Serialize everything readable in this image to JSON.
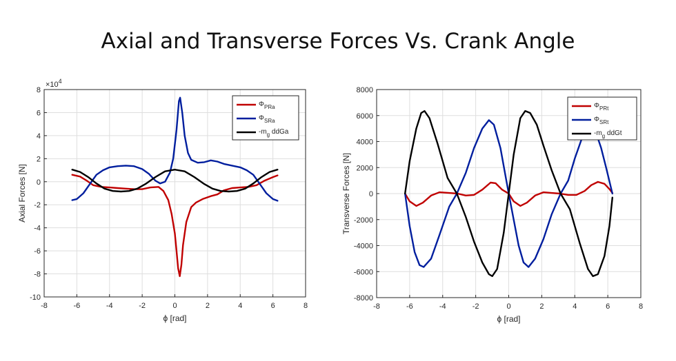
{
  "title": "Axial and Transverse Forces Vs. Crank Angle",
  "chart_data": [
    {
      "type": "line",
      "xlabel": "ϕ [rad]",
      "ylabel": "Axial Forces [N]",
      "exponent_label": "×10",
      "exponent_power": "4",
      "xlim": [
        -8,
        8
      ],
      "ylim": [
        -10,
        8
      ],
      "x_ticks": [
        -8,
        -6,
        -4,
        -2,
        0,
        2,
        4,
        6,
        8
      ],
      "y_ticks": [
        -10,
        -8,
        -6,
        -4,
        -2,
        0,
        2,
        4,
        6,
        8
      ],
      "x_tick_labels": [
        "-8",
        "-6",
        "-4",
        "-2",
        "0",
        "2",
        "4",
        "6",
        "8"
      ],
      "y_tick_labels": [
        "-10",
        "-8",
        "-6",
        "-4",
        "-2",
        "0",
        "2",
        "4",
        "6",
        "8"
      ],
      "grid": true,
      "legend_position": "top-right",
      "units_note": "y values in units of 10^4 N",
      "series": [
        {
          "sym": "Φ",
          "sub": "PRa",
          "color": "#c00000",
          "points": [
            [
              -6.28,
              0.6
            ],
            [
              -5.8,
              0.45
            ],
            [
              -5.4,
              0.1
            ],
            [
              -5.0,
              -0.3
            ],
            [
              -4.5,
              -0.45
            ],
            [
              -4.0,
              -0.5
            ],
            [
              -3.5,
              -0.55
            ],
            [
              -3.0,
              -0.6
            ],
            [
              -2.5,
              -0.65
            ],
            [
              -2.0,
              -0.65
            ],
            [
              -1.5,
              -0.5
            ],
            [
              -1.0,
              -0.45
            ],
            [
              -0.7,
              -0.8
            ],
            [
              -0.4,
              -1.6
            ],
            [
              -0.2,
              -2.8
            ],
            [
              0.0,
              -4.5
            ],
            [
              0.1,
              -6.0
            ],
            [
              0.2,
              -7.5
            ],
            [
              0.3,
              -8.2
            ],
            [
              0.4,
              -7.2
            ],
            [
              0.5,
              -5.5
            ],
            [
              0.7,
              -3.5
            ],
            [
              1.0,
              -2.2
            ],
            [
              1.3,
              -1.8
            ],
            [
              1.7,
              -1.5
            ],
            [
              2.2,
              -1.25
            ],
            [
              2.6,
              -1.1
            ],
            [
              3.0,
              -0.75
            ],
            [
              3.5,
              -0.55
            ],
            [
              4.0,
              -0.5
            ],
            [
              4.5,
              -0.45
            ],
            [
              5.0,
              -0.3
            ],
            [
              5.5,
              0.1
            ],
            [
              6.0,
              0.4
            ],
            [
              6.28,
              0.55
            ]
          ]
        },
        {
          "sym": "Φ",
          "sub": "SRa",
          "color": "#001e9e",
          "points": [
            [
              -6.28,
              -1.6
            ],
            [
              -6.0,
              -1.5
            ],
            [
              -5.6,
              -1.0
            ],
            [
              -5.2,
              -0.2
            ],
            [
              -4.8,
              0.6
            ],
            [
              -4.4,
              1.0
            ],
            [
              -4.0,
              1.25
            ],
            [
              -3.5,
              1.35
            ],
            [
              -3.0,
              1.4
            ],
            [
              -2.5,
              1.35
            ],
            [
              -2.0,
              1.1
            ],
            [
              -1.6,
              0.7
            ],
            [
              -1.2,
              0.1
            ],
            [
              -0.9,
              -0.15
            ],
            [
              -0.6,
              0.0
            ],
            [
              -0.3,
              0.8
            ],
            [
              -0.1,
              2.0
            ],
            [
              0.1,
              4.5
            ],
            [
              0.25,
              7.0
            ],
            [
              0.32,
              7.3
            ],
            [
              0.45,
              6.0
            ],
            [
              0.6,
              4.0
            ],
            [
              0.8,
              2.5
            ],
            [
              1.0,
              1.9
            ],
            [
              1.4,
              1.65
            ],
            [
              1.8,
              1.7
            ],
            [
              2.2,
              1.85
            ],
            [
              2.6,
              1.75
            ],
            [
              3.0,
              1.55
            ],
            [
              3.5,
              1.4
            ],
            [
              4.0,
              1.25
            ],
            [
              4.4,
              1.0
            ],
            [
              4.8,
              0.6
            ],
            [
              5.2,
              -0.2
            ],
            [
              5.6,
              -1.0
            ],
            [
              6.0,
              -1.5
            ],
            [
              6.28,
              -1.65
            ]
          ]
        },
        {
          "sym": "-m",
          "sub": "g",
          "tail": " ddGa",
          "color": "#000000",
          "points": [
            [
              -6.28,
              1.05
            ],
            [
              -5.8,
              0.85
            ],
            [
              -5.3,
              0.4
            ],
            [
              -4.8,
              -0.15
            ],
            [
              -4.3,
              -0.6
            ],
            [
              -3.8,
              -0.8
            ],
            [
              -3.3,
              -0.85
            ],
            [
              -2.8,
              -0.8
            ],
            [
              -2.3,
              -0.6
            ],
            [
              -1.8,
              -0.2
            ],
            [
              -1.2,
              0.4
            ],
            [
              -0.6,
              0.9
            ],
            [
              0.0,
              1.05
            ],
            [
              0.6,
              0.9
            ],
            [
              1.2,
              0.4
            ],
            [
              1.8,
              -0.2
            ],
            [
              2.3,
              -0.6
            ],
            [
              2.8,
              -0.8
            ],
            [
              3.3,
              -0.85
            ],
            [
              3.8,
              -0.8
            ],
            [
              4.3,
              -0.6
            ],
            [
              4.8,
              -0.15
            ],
            [
              5.3,
              0.4
            ],
            [
              5.8,
              0.85
            ],
            [
              6.28,
              1.05
            ]
          ]
        }
      ]
    },
    {
      "type": "line",
      "xlabel": "ϕ [rad]",
      "ylabel": "Transverse Forces [N]",
      "xlim": [
        -8,
        8
      ],
      "ylim": [
        -8000,
        8000
      ],
      "x_ticks": [
        -8,
        -6,
        -4,
        -2,
        0,
        2,
        4,
        6,
        8
      ],
      "y_ticks": [
        -8000,
        -6000,
        -4000,
        -2000,
        0,
        2000,
        4000,
        6000,
        8000
      ],
      "x_tick_labels": [
        "-8",
        "-6",
        "-4",
        "-2",
        "0",
        "2",
        "4",
        "6",
        "8"
      ],
      "y_tick_labels": [
        "-8000",
        "-6000",
        "-4000",
        "-2000",
        "0",
        "2000",
        "4000",
        "6000",
        "8000"
      ],
      "grid": true,
      "legend_position": "top-right",
      "series": [
        {
          "sym": "Φ",
          "sub": "PRt",
          "color": "#c00000",
          "points": [
            [
              -6.28,
              0
            ],
            [
              -6.0,
              -600
            ],
            [
              -5.6,
              -950
            ],
            [
              -5.2,
              -700
            ],
            [
              -4.7,
              -150
            ],
            [
              -4.2,
              100
            ],
            [
              -3.6,
              50
            ],
            [
              -3.1,
              0
            ],
            [
              -2.6,
              -150
            ],
            [
              -2.1,
              -100
            ],
            [
              -1.6,
              300
            ],
            [
              -1.1,
              850
            ],
            [
              -0.8,
              800
            ],
            [
              -0.4,
              300
            ],
            [
              0.0,
              0
            ],
            [
              0.3,
              -600
            ],
            [
              0.7,
              -950
            ],
            [
              1.1,
              -700
            ],
            [
              1.6,
              -150
            ],
            [
              2.1,
              100
            ],
            [
              2.6,
              50
            ],
            [
              3.1,
              0
            ],
            [
              3.6,
              -100
            ],
            [
              4.1,
              -100
            ],
            [
              4.6,
              200
            ],
            [
              5.0,
              650
            ],
            [
              5.4,
              900
            ],
            [
              5.8,
              750
            ],
            [
              6.1,
              350
            ],
            [
              6.28,
              50
            ]
          ]
        },
        {
          "sym": "Φ",
          "sub": "SRt",
          "color": "#001e9e",
          "points": [
            [
              -6.28,
              0
            ],
            [
              -6.0,
              -2500
            ],
            [
              -5.7,
              -4500
            ],
            [
              -5.4,
              -5500
            ],
            [
              -5.15,
              -5650
            ],
            [
              -4.7,
              -5000
            ],
            [
              -4.2,
              -3200
            ],
            [
              -3.6,
              -1000
            ],
            [
              -3.14,
              0
            ],
            [
              -2.6,
              1600
            ],
            [
              -2.1,
              3500
            ],
            [
              -1.6,
              5000
            ],
            [
              -1.2,
              5650
            ],
            [
              -0.9,
              5300
            ],
            [
              -0.5,
              3500
            ],
            [
              -0.2,
              1400
            ],
            [
              0.0,
              0
            ],
            [
              0.3,
              -2000
            ],
            [
              0.6,
              -4000
            ],
            [
              0.9,
              -5300
            ],
            [
              1.2,
              -5650
            ],
            [
              1.6,
              -5000
            ],
            [
              2.1,
              -3500
            ],
            [
              2.6,
              -1600
            ],
            [
              3.14,
              0
            ],
            [
              3.6,
              1000
            ],
            [
              4.0,
              2700
            ],
            [
              4.5,
              4500
            ],
            [
              4.9,
              5300
            ],
            [
              5.2,
              5000
            ],
            [
              5.6,
              3500
            ],
            [
              5.9,
              2000
            ],
            [
              6.28,
              0
            ]
          ]
        },
        {
          "sym": "-m",
          "sub": "g",
          "tail": " ddGt",
          "color": "#000000",
          "points": [
            [
              -6.28,
              0
            ],
            [
              -6.0,
              2500
            ],
            [
              -5.6,
              5000
            ],
            [
              -5.3,
              6200
            ],
            [
              -5.1,
              6350
            ],
            [
              -4.8,
              5800
            ],
            [
              -4.3,
              3800
            ],
            [
              -3.7,
              1200
            ],
            [
              -3.14,
              0
            ],
            [
              -2.6,
              -1800
            ],
            [
              -2.1,
              -3700
            ],
            [
              -1.6,
              -5300
            ],
            [
              -1.2,
              -6200
            ],
            [
              -1.0,
              -6350
            ],
            [
              -0.7,
              -5800
            ],
            [
              -0.3,
              -3000
            ],
            [
              0.0,
              0
            ],
            [
              0.3,
              3000
            ],
            [
              0.7,
              5800
            ],
            [
              1.0,
              6350
            ],
            [
              1.3,
              6200
            ],
            [
              1.7,
              5300
            ],
            [
              2.1,
              3700
            ],
            [
              2.6,
              1800
            ],
            [
              3.14,
              0
            ],
            [
              3.7,
              -1200
            ],
            [
              4.3,
              -3800
            ],
            [
              4.8,
              -5800
            ],
            [
              5.1,
              -6350
            ],
            [
              5.4,
              -6200
            ],
            [
              5.8,
              -4800
            ],
            [
              6.1,
              -2500
            ],
            [
              6.28,
              -300
            ]
          ]
        }
      ]
    }
  ]
}
